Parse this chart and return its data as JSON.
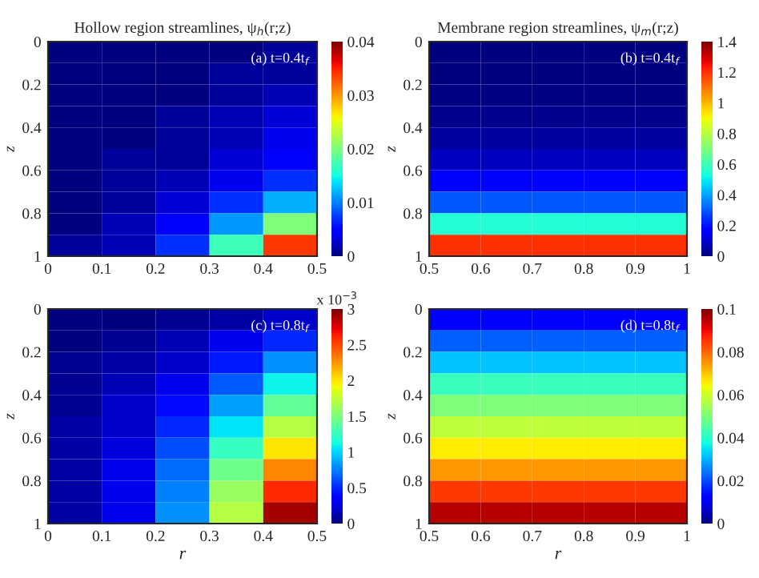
{
  "chart_data": [
    {
      "type": "heatmap",
      "title": "Hollow region streamlines, ψ$_{h}$(r;z)",
      "ylabel": "z",
      "annotations": [
        "(a) t=0.4t$_{f}$"
      ],
      "xlim": [
        0,
        0.5
      ],
      "xticks": [
        0,
        0.1,
        0.2,
        0.3,
        0.4,
        0.5
      ],
      "ylim": [
        1,
        0
      ],
      "yticks": [
        0,
        0.2,
        0.4,
        0.6,
        0.8,
        1
      ],
      "clim": [
        0,
        0.04
      ],
      "cticks": [
        0,
        0.01,
        0.02,
        0.03,
        0.04
      ],
      "cells": [
        [
          0,
          0,
          0,
          0,
          0.001
        ],
        [
          0,
          0,
          0,
          0.001,
          0.001
        ],
        [
          0,
          0,
          0,
          0.001,
          0.002
        ],
        [
          0,
          0,
          0.001,
          0.002,
          0.003
        ],
        [
          0,
          0,
          0.001,
          0.002,
          0.004
        ],
        [
          0,
          0.001,
          0.001,
          0.003,
          0.005
        ],
        [
          0,
          0.001,
          0.002,
          0.004,
          0.007
        ],
        [
          0,
          0.001,
          0.003,
          0.007,
          0.012
        ],
        [
          0,
          0.002,
          0.005,
          0.011,
          0.02
        ],
        [
          0.001,
          0.002,
          0.007,
          0.017,
          0.034
        ]
      ]
    },
    {
      "type": "heatmap",
      "title": "Membrane region streamlines, ψ$_{m}$(r;z)",
      "ylabel": "z",
      "annotations": [
        "(b) t=0.4t$_{f}$"
      ],
      "xlim": [
        0.5,
        1
      ],
      "xticks": [
        0.5,
        0.6,
        0.7,
        0.8,
        0.9,
        1
      ],
      "ylim": [
        1,
        0
      ],
      "yticks": [
        0,
        0.2,
        0.4,
        0.6,
        0.8,
        1
      ],
      "clim": [
        0,
        1.4
      ],
      "cticks": [
        0,
        0.2,
        0.4,
        0.6,
        0.8,
        1,
        1.2,
        1.4
      ],
      "cells": [
        [
          0,
          0,
          0,
          0,
          0
        ],
        [
          0,
          0,
          0,
          0,
          0
        ],
        [
          0.01,
          0.01,
          0.01,
          0.01,
          0.01
        ],
        [
          0.02,
          0.02,
          0.02,
          0.02,
          0.02
        ],
        [
          0.04,
          0.04,
          0.04,
          0.04,
          0.04
        ],
        [
          0.08,
          0.08,
          0.08,
          0.08,
          0.08
        ],
        [
          0.16,
          0.16,
          0.16,
          0.16,
          0.16
        ],
        [
          0.3,
          0.3,
          0.3,
          0.3,
          0.3
        ],
        [
          0.55,
          0.55,
          0.55,
          0.55,
          0.55
        ],
        [
          1.2,
          1.2,
          1.2,
          1.2,
          1.2
        ]
      ]
    },
    {
      "type": "heatmap",
      "xlabel": "r",
      "ylabel": "z",
      "clabel": "x 10$^{−3}$",
      "annotations": [
        "(c) t=0.8t$_{f}$"
      ],
      "xlim": [
        0,
        0.5
      ],
      "xticks": [
        0,
        0.1,
        0.2,
        0.3,
        0.4,
        0.5
      ],
      "ylim": [
        1,
        0
      ],
      "yticks": [
        0,
        0.2,
        0.4,
        0.6,
        0.8,
        1
      ],
      "clim": [
        0,
        3
      ],
      "cticks": [
        0,
        0.5,
        1,
        1.5,
        2,
        2.5,
        3
      ],
      "cells": [
        [
          0,
          0,
          0.05,
          0.1,
          0.2
        ],
        [
          0,
          0.05,
          0.15,
          0.3,
          0.5
        ],
        [
          0.05,
          0.1,
          0.2,
          0.45,
          0.8
        ],
        [
          0.05,
          0.15,
          0.3,
          0.65,
          1.1
        ],
        [
          0.05,
          0.2,
          0.4,
          0.85,
          1.4
        ],
        [
          0.1,
          0.2,
          0.5,
          1.05,
          1.7
        ],
        [
          0.1,
          0.25,
          0.6,
          1.25,
          2
        ],
        [
          0.1,
          0.3,
          0.7,
          1.45,
          2.3
        ],
        [
          0.1,
          0.3,
          0.75,
          1.6,
          2.6
        ],
        [
          0.1,
          0.3,
          0.8,
          1.7,
          2.9
        ]
      ]
    },
    {
      "type": "heatmap",
      "xlabel": "r",
      "ylabel": "z",
      "annotations": [
        "(d) t=0.8t$_{f}$"
      ],
      "xlim": [
        0.5,
        1
      ],
      "xticks": [
        0.5,
        0.6,
        0.7,
        0.8,
        0.9,
        1
      ],
      "ylim": [
        1,
        0
      ],
      "yticks": [
        0,
        0.2,
        0.4,
        0.6,
        0.8,
        1
      ],
      "clim": [
        0,
        0.1
      ],
      "cticks": [
        0,
        0.02,
        0.04,
        0.06,
        0.08,
        0.1
      ],
      "cells": [
        [
          0.012,
          0.012,
          0.012,
          0.012,
          0.012
        ],
        [
          0.022,
          0.022,
          0.022,
          0.022,
          0.022
        ],
        [
          0.032,
          0.032,
          0.032,
          0.032,
          0.032
        ],
        [
          0.042,
          0.042,
          0.042,
          0.042,
          0.042
        ],
        [
          0.05,
          0.05,
          0.05,
          0.05,
          0.05
        ],
        [
          0.058,
          0.058,
          0.058,
          0.058,
          0.058
        ],
        [
          0.066,
          0.066,
          0.066,
          0.066,
          0.066
        ],
        [
          0.075,
          0.075,
          0.075,
          0.075,
          0.075
        ],
        [
          0.085,
          0.085,
          0.085,
          0.085,
          0.085
        ],
        [
          0.095,
          0.095,
          0.095,
          0.095,
          0.095
        ]
      ]
    }
  ]
}
